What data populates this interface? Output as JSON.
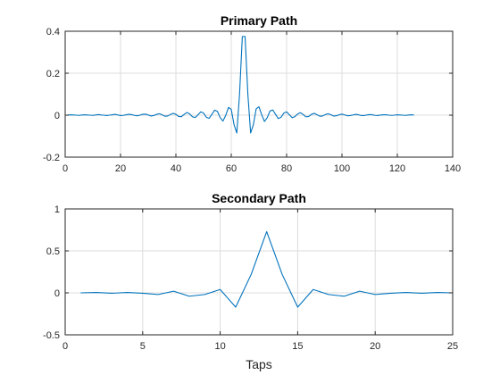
{
  "chart_data": [
    {
      "type": "line",
      "title": "Primary Path",
      "xlabel": "",
      "ylabel": "",
      "xlim": [
        0,
        140
      ],
      "ylim": [
        -0.2,
        0.4
      ],
      "xticks": [
        0,
        20,
        40,
        60,
        80,
        100,
        120,
        140
      ],
      "yticks": [
        -0.2,
        0,
        0.2,
        0.4
      ],
      "xtick_labels": [
        "0",
        "20",
        "40",
        "60",
        "80",
        "100",
        "120",
        "140"
      ],
      "ytick_labels": [
        "-0.2",
        "0",
        "0.2",
        "0.4"
      ],
      "grid": true,
      "color": "#0072bd",
      "series": [
        {
          "x": [
            1,
            2,
            3,
            4,
            5,
            6,
            7,
            8,
            9,
            10,
            11,
            12,
            13,
            14,
            15,
            16,
            17,
            18,
            19,
            20,
            21,
            22,
            23,
            24,
            25,
            26,
            27,
            28,
            29,
            30,
            31,
            32,
            33,
            34,
            35,
            36,
            37,
            38,
            39,
            40,
            41,
            42,
            43,
            44,
            45,
            46,
            47,
            48,
            49,
            50,
            51,
            52,
            53,
            54,
            55,
            56,
            57,
            58,
            59,
            60,
            61,
            62,
            63,
            64,
            65,
            66,
            67,
            68,
            69,
            70,
            71,
            72,
            73,
            74,
            75,
            76,
            77,
            78,
            79,
            80,
            81,
            82,
            83,
            84,
            85,
            86,
            87,
            88,
            89,
            90,
            91,
            92,
            93,
            94,
            95,
            96,
            97,
            98,
            99,
            100,
            101,
            102,
            103,
            104,
            105,
            106,
            107,
            108,
            109,
            110,
            111,
            112,
            113,
            114,
            115,
            116,
            117,
            118,
            119,
            120,
            121,
            122,
            123,
            124,
            125,
            126
          ],
          "y": [
            0.001,
            0.002,
            0.001,
            0.0,
            -0.001,
            0.001,
            0.002,
            0.001,
            0.0,
            -0.001,
            0.001,
            0.003,
            0.001,
            0.0,
            -0.002,
            0.0,
            0.002,
            0.004,
            0.001,
            -0.002,
            -0.001,
            0.002,
            0.004,
            0.003,
            -0.001,
            -0.003,
            0.0,
            0.004,
            0.005,
            0.001,
            -0.004,
            -0.002,
            0.004,
            0.007,
            0.002,
            -0.005,
            -0.004,
            0.003,
            0.009,
            0.004,
            -0.006,
            -0.007,
            0.004,
            0.013,
            0.006,
            -0.008,
            -0.011,
            0.002,
            0.016,
            0.01,
            -0.01,
            -0.015,
            0.004,
            0.024,
            0.018,
            -0.012,
            -0.028,
            -0.001,
            0.037,
            0.028,
            -0.045,
            -0.085,
            0.1,
            0.375,
            0.375,
            0.1,
            -0.085,
            -0.045,
            0.03,
            0.04,
            0.002,
            -0.03,
            -0.012,
            0.02,
            0.025,
            0.004,
            -0.016,
            -0.01,
            0.01,
            0.016,
            0.002,
            -0.012,
            -0.007,
            0.006,
            0.012,
            0.003,
            -0.008,
            -0.006,
            0.004,
            0.009,
            0.002,
            -0.005,
            -0.004,
            0.003,
            0.007,
            0.002,
            -0.004,
            -0.003,
            0.002,
            0.005,
            0.001,
            -0.003,
            -0.002,
            0.001,
            0.004,
            0.002,
            -0.002,
            -0.002,
            0.001,
            0.003,
            0.002,
            -0.001,
            -0.002,
            0.001,
            0.002,
            0.002,
            0.0,
            -0.001,
            0.0,
            0.002,
            0.001,
            0.0,
            -0.001,
            0.001,
            0.002,
            0.001
          ]
        }
      ]
    },
    {
      "type": "line",
      "title": "Secondary Path",
      "xlabel": "Taps",
      "ylabel": "",
      "xlim": [
        0,
        25
      ],
      "ylim": [
        -0.5,
        1
      ],
      "xticks": [
        0,
        5,
        10,
        15,
        20,
        25
      ],
      "yticks": [
        -0.5,
        0,
        0.5,
        1
      ],
      "xtick_labels": [
        "0",
        "5",
        "10",
        "15",
        "20",
        "25"
      ],
      "ytick_labels": [
        "-0.5",
        "0",
        "0.5",
        "1"
      ],
      "grid": true,
      "color": "#0072bd",
      "series": [
        {
          "x": [
            1,
            2,
            3,
            4,
            5,
            6,
            7,
            8,
            9,
            10,
            11,
            12,
            13,
            14,
            15,
            16,
            17,
            18,
            19,
            20,
            21,
            22,
            23,
            24,
            25
          ],
          "y": [
            0.0,
            0.005,
            -0.005,
            0.005,
            -0.005,
            -0.02,
            0.02,
            -0.04,
            -0.02,
            0.04,
            -0.17,
            0.22,
            0.73,
            0.22,
            -0.17,
            0.04,
            -0.02,
            -0.04,
            0.02,
            -0.02,
            -0.005,
            0.005,
            -0.005,
            0.005,
            0.0
          ]
        }
      ]
    }
  ]
}
